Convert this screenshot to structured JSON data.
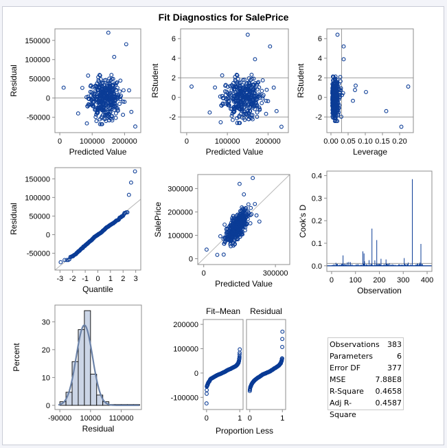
{
  "title": "Fit Diagnostics for SalePrice",
  "colors": {
    "marker": "#0b3c96",
    "refline": "#9a9a9a",
    "frame": "#8c8c8c",
    "bar_fill": "#cbd5e6",
    "curve": "#6b82a8",
    "cooks": "#0b3c96"
  },
  "chart_data": [
    {
      "id": "residual-vs-predicted",
      "type": "scatter",
      "xlabel": "Predicted Value",
      "ylabel": "Residual",
      "xlim": [
        -15000,
        250000
      ],
      "ylim": [
        -90000,
        180000
      ],
      "xticks": [
        0,
        100000,
        200000
      ],
      "xtick_labels": [
        "0",
        "100000",
        "200000"
      ],
      "yticks": [
        -50000,
        0,
        50000,
        100000,
        150000
      ],
      "ytick_labels": [
        "-50000",
        "0",
        "50000",
        "100000",
        "150000"
      ],
      "reflines_y": [
        0
      ],
      "n": 383,
      "notable_points": [
        [
          150000,
          170000
        ],
        [
          205000,
          140000
        ],
        [
          168000,
          107000
        ],
        [
          12000,
          27000
        ],
        [
          233000,
          -74000
        ],
        [
          221000,
          -36000
        ],
        [
          214000,
          20000
        ]
      ]
    },
    {
      "id": "rstudent-vs-predicted",
      "type": "scatter",
      "xlabel": "Predicted Value",
      "ylabel": "RStudent",
      "xlim": [
        -15000,
        250000
      ],
      "ylim": [
        -3.6,
        7
      ],
      "xticks": [
        0,
        100000,
        200000
      ],
      "xtick_labels": [
        "0",
        "100000",
        "200000"
      ],
      "yticks": [
        -2,
        0,
        2,
        4,
        6
      ],
      "ytick_labels": [
        "-2",
        "0",
        "2",
        "4",
        "6"
      ],
      "reflines_y": [
        -2,
        2
      ],
      "n": 383,
      "notable_points": [
        [
          150000,
          6.4
        ],
        [
          205000,
          5.2
        ],
        [
          168000,
          3.9
        ],
        [
          12000,
          1.1
        ],
        [
          233000,
          -3.0
        ],
        [
          221000,
          -1.4
        ],
        [
          212000,
          1.0
        ]
      ]
    },
    {
      "id": "rstudent-vs-leverage",
      "type": "scatter",
      "xlabel": "Leverage",
      "ylabel": "RStudent",
      "xlim": [
        -0.012,
        0.24
      ],
      "ylim": [
        -3.6,
        7
      ],
      "xticks": [
        0.0,
        0.05,
        0.1,
        0.15,
        0.2
      ],
      "xtick_labels": [
        "0.00",
        "0.05",
        "0.10",
        "0.15",
        "0.20"
      ],
      "yticks": [
        -2,
        0,
        2,
        4,
        6
      ],
      "ytick_labels": [
        "-2",
        "0",
        "2",
        "4",
        "6"
      ],
      "reflines_y": [
        -2,
        2
      ],
      "reflines_x": [
        0.031
      ],
      "n": 383,
      "notable_points": [
        [
          0.019,
          6.4
        ],
        [
          0.037,
          5.2
        ],
        [
          0.037,
          3.9
        ],
        [
          0.225,
          1.1
        ],
        [
          0.205,
          -3.0
        ],
        [
          0.161,
          -1.4
        ],
        [
          0.102,
          0.55
        ],
        [
          0.072,
          1.2
        ],
        [
          0.07,
          0.75
        ],
        [
          0.064,
          -0.35
        ]
      ]
    },
    {
      "id": "residual-qq",
      "type": "scatter",
      "xlabel": "Quantile",
      "ylabel": "Residual",
      "xlim": [
        -3.4,
        3.4
      ],
      "ylim": [
        -95000,
        180000
      ],
      "xticks": [
        -3,
        -2,
        -1,
        0,
        1,
        2,
        3
      ],
      "xtick_labels": [
        "-3",
        "-2",
        "-1",
        "0",
        "1",
        "2",
        "3"
      ],
      "yticks": [
        -50000,
        0,
        50000,
        100000,
        150000
      ],
      "ytick_labels": [
        "-50000",
        "0",
        "50000",
        "100000",
        "150000"
      ],
      "refline": {
        "intercept": 0,
        "slope": 28000
      },
      "n": 383,
      "notable_points": [
        [
          2.97,
          170000
        ],
        [
          2.62,
          140000
        ],
        [
          2.45,
          107000
        ],
        [
          -2.97,
          -75000
        ]
      ]
    },
    {
      "id": "observed-vs-predicted",
      "type": "scatter",
      "xlabel": "Predicted Value",
      "ylabel": "SalePrice",
      "xlim": [
        -25000,
        360000
      ],
      "ylim": [
        -25000,
        360000
      ],
      "xticks": [
        0,
        300000
      ],
      "xtick_labels": [
        "0",
        "300000"
      ],
      "yticks": [
        0,
        100000,
        200000,
        300000
      ],
      "ytick_labels": [
        "0",
        "100000",
        "200000",
        "300000"
      ],
      "refline": {
        "intercept": 0,
        "slope": 1
      },
      "n": 383,
      "notable_points": [
        [
          150000,
          320000
        ],
        [
          200000,
          343000
        ],
        [
          12000,
          38000
        ],
        [
          233000,
          160000
        ],
        [
          220000,
          185000
        ]
      ]
    },
    {
      "id": "cooks-d",
      "type": "bar",
      "xlabel": "Observation",
      "ylabel": "Cook's D",
      "xlim": [
        -20,
        420
      ],
      "ylim": [
        -0.025,
        0.42
      ],
      "xticks": [
        0,
        100,
        200,
        300,
        400
      ],
      "xtick_labels": [
        "0",
        "100",
        "200",
        "300",
        "400"
      ],
      "yticks": [
        0.0,
        0.1,
        0.2,
        0.3,
        0.4
      ],
      "ytick_labels": [
        "0.0",
        "0.1",
        "0.2",
        "0.3",
        "0.4"
      ],
      "reflines_y": [
        0.0104
      ],
      "notable_spikes": [
        [
          338,
          0.384
        ],
        [
          169,
          0.165
        ],
        [
          189,
          0.114
        ],
        [
          374,
          0.097
        ],
        [
          131,
          0.064
        ],
        [
          136,
          0.055
        ],
        [
          48,
          0.046
        ],
        [
          304,
          0.034
        ],
        [
          207,
          0.031
        ],
        [
          228,
          0.028
        ],
        [
          157,
          0.025
        ],
        [
          181,
          0.024
        ],
        [
          138,
          0.02
        ],
        [
          72,
          0.017
        ],
        [
          79,
          0.016
        ],
        [
          66,
          0.015
        ],
        [
          18,
          0.013
        ],
        [
          321,
          0.014
        ],
        [
          242,
          0.011
        ],
        [
          360,
          0.011
        ],
        [
          370,
          0.014
        ]
      ]
    },
    {
      "id": "residual-histogram",
      "type": "bar",
      "xlabel": "Residual",
      "ylabel": "Percent",
      "xlim": [
        -106000,
        176000
      ],
      "ylim": [
        -1.5,
        36
      ],
      "xticks": [
        -90000,
        10000,
        110000
      ],
      "xtick_labels": [
        "-90000",
        "10000",
        "110000"
      ],
      "yticks": [
        0,
        10,
        20,
        30
      ],
      "ytick_labels": [
        "0",
        "10",
        "20",
        "30"
      ],
      "bin_width": 20000,
      "bins": [
        {
          "from": -90000,
          "to": -70000,
          "percent": 1.3
        },
        {
          "from": -70000,
          "to": -50000,
          "percent": 4.7
        },
        {
          "from": -50000,
          "to": -30000,
          "percent": 15.7
        },
        {
          "from": -30000,
          "to": -10000,
          "percent": 27.2
        },
        {
          "from": -10000,
          "to": 10000,
          "percent": 34.0
        },
        {
          "from": 10000,
          "to": 30000,
          "percent": 11.2
        },
        {
          "from": 30000,
          "to": 50000,
          "percent": 3.7
        },
        {
          "from": 50000,
          "to": 70000,
          "percent": 1.3
        },
        {
          "from": 70000,
          "to": 90000,
          "percent": 0.3
        },
        {
          "from": 90000,
          "to": 110000,
          "percent": 0.3
        },
        {
          "from": 110000,
          "to": 130000,
          "percent": 0.3
        },
        {
          "from": 130000,
          "to": 150000,
          "percent": 0.3
        },
        {
          "from": 150000,
          "to": 170000,
          "percent": 0.3
        }
      ],
      "normal_curve": {
        "mean": -10000,
        "sd": 26500,
        "peak_percent": 28.8
      }
    },
    {
      "id": "residual-fit-spread",
      "type": "scatter",
      "xlabel": "Proportion Less",
      "ylabel": "",
      "panels": [
        "Fit–Mean",
        "Residual"
      ],
      "xlim": [
        -0.1,
        1.1
      ],
      "ylim": [
        -150000,
        220000
      ],
      "xticks": [
        0,
        1
      ],
      "xtick_labels": [
        "0",
        "1"
      ],
      "yticks": [
        -100000,
        0,
        100000,
        200000
      ],
      "ytick_labels": [
        "-100000",
        "0",
        "100000",
        "200000"
      ],
      "n": 383,
      "fit_mean_extremes": {
        "min": -125000,
        "max": 97000
      },
      "residual_extremes": {
        "min": -75000,
        "max": 170000
      }
    }
  ],
  "stats_table": {
    "rows": [
      {
        "label": "Observations",
        "value": "383"
      },
      {
        "label": "Parameters",
        "value": "6"
      },
      {
        "label": "Error DF",
        "value": "377"
      },
      {
        "label": "MSE",
        "value": "7.88E8"
      },
      {
        "label": "R-Square",
        "value": "0.4658"
      },
      {
        "label": "Adj R-Square",
        "value": "0.4587"
      }
    ]
  }
}
